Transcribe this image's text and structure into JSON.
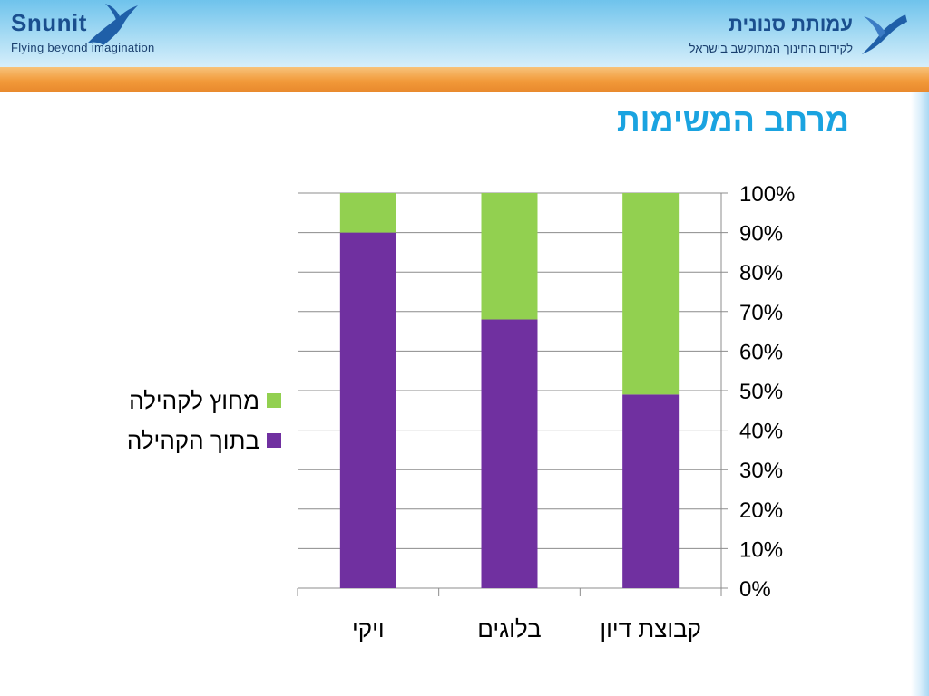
{
  "header": {
    "left_brand": "Snunit",
    "left_tagline": "Flying beyond imagination",
    "right_brand": "עמותת סנונית",
    "right_tagline": "לקידום החינוך המתוקשב בישראל"
  },
  "slide": {
    "title": "מרחב המשימות"
  },
  "colors": {
    "inside": "#7030a0",
    "outside": "#92d050",
    "title": "#1aa3e0"
  },
  "chart_data": {
    "type": "bar",
    "stacked": true,
    "categories": [
      "ויקי",
      "בלוגים",
      "קבוצת דיון"
    ],
    "series": [
      {
        "name": "בתוך הקהילה",
        "values": [
          90,
          68,
          49
        ]
      },
      {
        "name": "מחוץ לקהילה",
        "values": [
          10,
          32,
          51
        ]
      }
    ],
    "yaxis": {
      "position": "right",
      "min": 0,
      "max": 100,
      "step": 10,
      "tick_labels": [
        "0%",
        "10%",
        "20%",
        "30%",
        "40%",
        "50%",
        "60%",
        "70%",
        "80%",
        "90%",
        "100%"
      ]
    },
    "grid": true,
    "legend_position": "left",
    "legend_order": [
      "מחוץ לקהילה",
      "בתוך הקהילה"
    ]
  }
}
